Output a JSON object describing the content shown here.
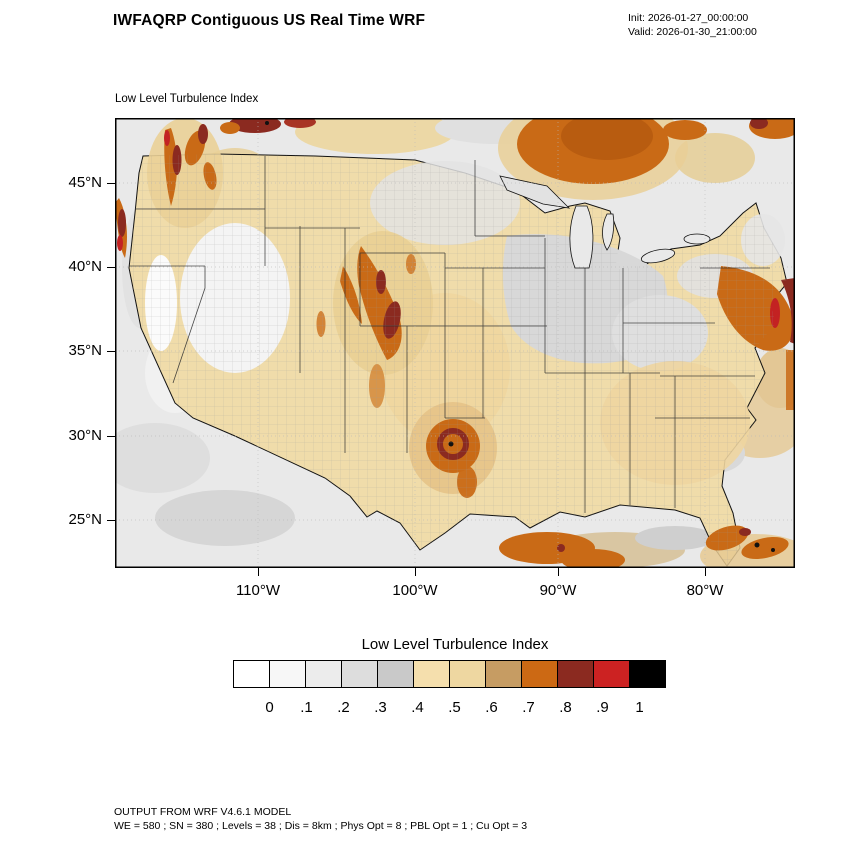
{
  "header": {
    "title": "IWFAQRP Contiguous US Real Time WRF",
    "init": "Init: 2026-01-27_00:00:00",
    "valid": "Valid: 2026-01-30_21:00:00"
  },
  "map": {
    "field_label": "Low Level Turbulence Index",
    "y_tick_labels": [
      "45°N",
      "40°N",
      "35°N",
      "30°N",
      "25°N"
    ],
    "x_tick_labels": [
      "110°W",
      "100°W",
      "90°W",
      "80°W"
    ]
  },
  "legend": {
    "title": "Low Level Turbulence Index",
    "tick_labels": [
      "0",
      ".1",
      ".2",
      ".3",
      ".4",
      ".5",
      ".6",
      ".7",
      ".8",
      ".9",
      "1"
    ],
    "colors": [
      "#ffffff",
      "#f7f7f7",
      "#ececec",
      "#dddddd",
      "#c9c9c9",
      "#f5dfad",
      "#eed7a1",
      "#c69c63",
      "#cc6914",
      "#8b2a20",
      "#cc2222",
      "#000000"
    ]
  },
  "footer": {
    "line1": "OUTPUT FROM WRF V4.6.1 MODEL",
    "line2": "WE = 580 ; SN = 380 ; Levels = 38 ; Dis = 8km ; Phys Opt = 8 ; PBL Opt = 1 ; Cu Opt = 3"
  },
  "chart_data": {
    "type": "heatmap",
    "title": "Low Level Turbulence Index",
    "colorbar_tick_values": [
      0,
      0.1,
      0.2,
      0.3,
      0.4,
      0.5,
      0.6,
      0.7,
      0.8,
      0.9,
      1
    ],
    "colorbar_colors": [
      "#ffffff",
      "#f7f7f7",
      "#ececec",
      "#dddddd",
      "#c9c9c9",
      "#f5dfad",
      "#eed7a1",
      "#c69c63",
      "#cc6914",
      "#8b2a20",
      "#cc2222",
      "#000000"
    ],
    "x_ticks": [
      "110°W",
      "100°W",
      "90°W",
      "80°W"
    ],
    "y_ticks": [
      "45°N",
      "40°N",
      "35°N",
      "30°N",
      "25°N"
    ]
  }
}
